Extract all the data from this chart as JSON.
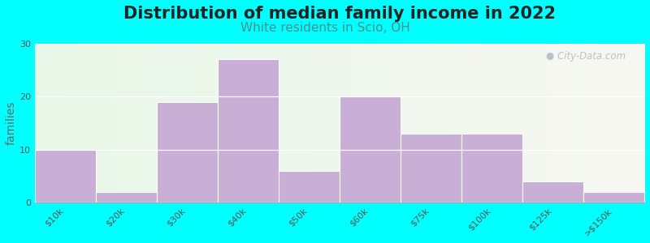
{
  "title": "Distribution of median family income in 2022",
  "subtitle": "White residents in Scio, OH",
  "xlabel": "",
  "ylabel": "families",
  "background_color": "#00FFFF",
  "bar_color": "#c9aed6",
  "bar_edge_color": "#ffffff",
  "categories": [
    "$10k",
    "$20k",
    "$30k",
    "$40k",
    "$50k",
    "$60k",
    "$75k",
    "$100k",
    "$125k",
    ">$150k"
  ],
  "values": [
    10,
    2,
    19,
    27,
    6,
    20,
    13,
    13,
    4,
    2
  ],
  "ylim": [
    0,
    30
  ],
  "yticks": [
    0,
    10,
    20,
    30
  ],
  "title_fontsize": 15,
  "subtitle_fontsize": 11,
  "subtitle_color": "#4a9090",
  "ylabel_fontsize": 10,
  "tick_label_fontsize": 8,
  "watermark_text": "City-Data.com",
  "watermark_color": "#b0b8c0"
}
